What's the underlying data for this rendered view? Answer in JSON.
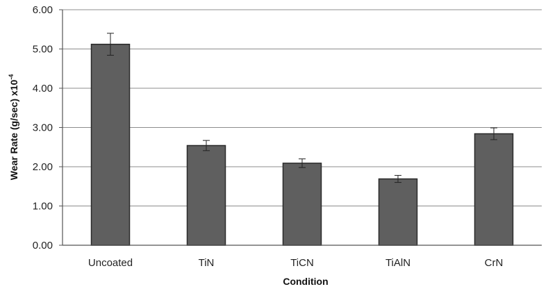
{
  "chart_data": {
    "type": "bar",
    "categories": [
      "Uncoated",
      "TiN",
      "TiCN",
      "TiAlN",
      "CrN"
    ],
    "values": [
      5.12,
      2.54,
      2.09,
      1.69,
      2.84
    ],
    "error": [
      0.28,
      0.13,
      0.11,
      0.09,
      0.15
    ],
    "title": "",
    "xlabel": "Condition",
    "ylabel": "Wear Rate (g/sec) x10",
    "ylabel_sup": "-4",
    "ylim": [
      0,
      6
    ],
    "yticks": [
      "0.00",
      "1.00",
      "2.00",
      "3.00",
      "4.00",
      "5.00",
      "6.00"
    ],
    "grid": true,
    "legend": "none",
    "colors": {
      "bar": "#5f5f5f",
      "bar_edge": "#2a2a2a",
      "grid": "#8c8c8c",
      "axis": "#555555",
      "error": "#222222"
    }
  }
}
